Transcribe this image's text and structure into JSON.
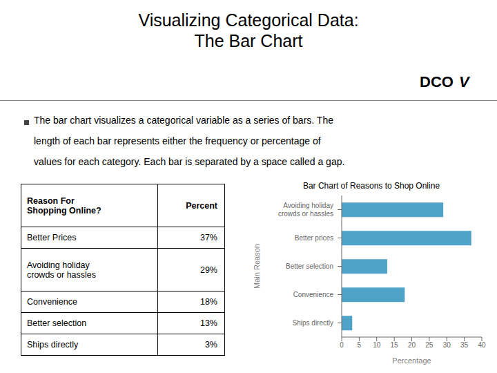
{
  "chart_data": {
    "type": "bar",
    "orientation": "horizontal",
    "title": "Bar Chart of Reasons to Shop Online",
    "xlabel": "Percentage",
    "ylabel": "Main Reason",
    "categories": [
      "Ships directly",
      "Convenience",
      "Better selection",
      "Better prices",
      "Avoiding holiday\ncrowds or hassles"
    ],
    "values": [
      3,
      18,
      13,
      37,
      29
    ],
    "color": "#4FA3C8",
    "xlim": [
      0,
      40
    ],
    "xticks": [
      0,
      5,
      10,
      15,
      20,
      25,
      30,
      35,
      40
    ],
    "grid": false,
    "annotations": [
      "Visualizing Categorical Data:",
      "The Bar Chart",
      "DCO",
      "V",
      "The bar chart visualizes a categorical variable as a series of bars. The",
      "length of each bar represents either the frequency or percentage of",
      "values for each category.  Each bar is separated by a space called a gap.",
      "Reason For\nShopping Online?",
      "Percent",
      "Better Prices",
      "37%",
      "Avoiding holiday\ncrowds or hassles",
      "29%",
      "Convenience",
      "18%",
      "Better selection",
      "13%",
      "Ships directly",
      "3%"
    ]
  }
}
